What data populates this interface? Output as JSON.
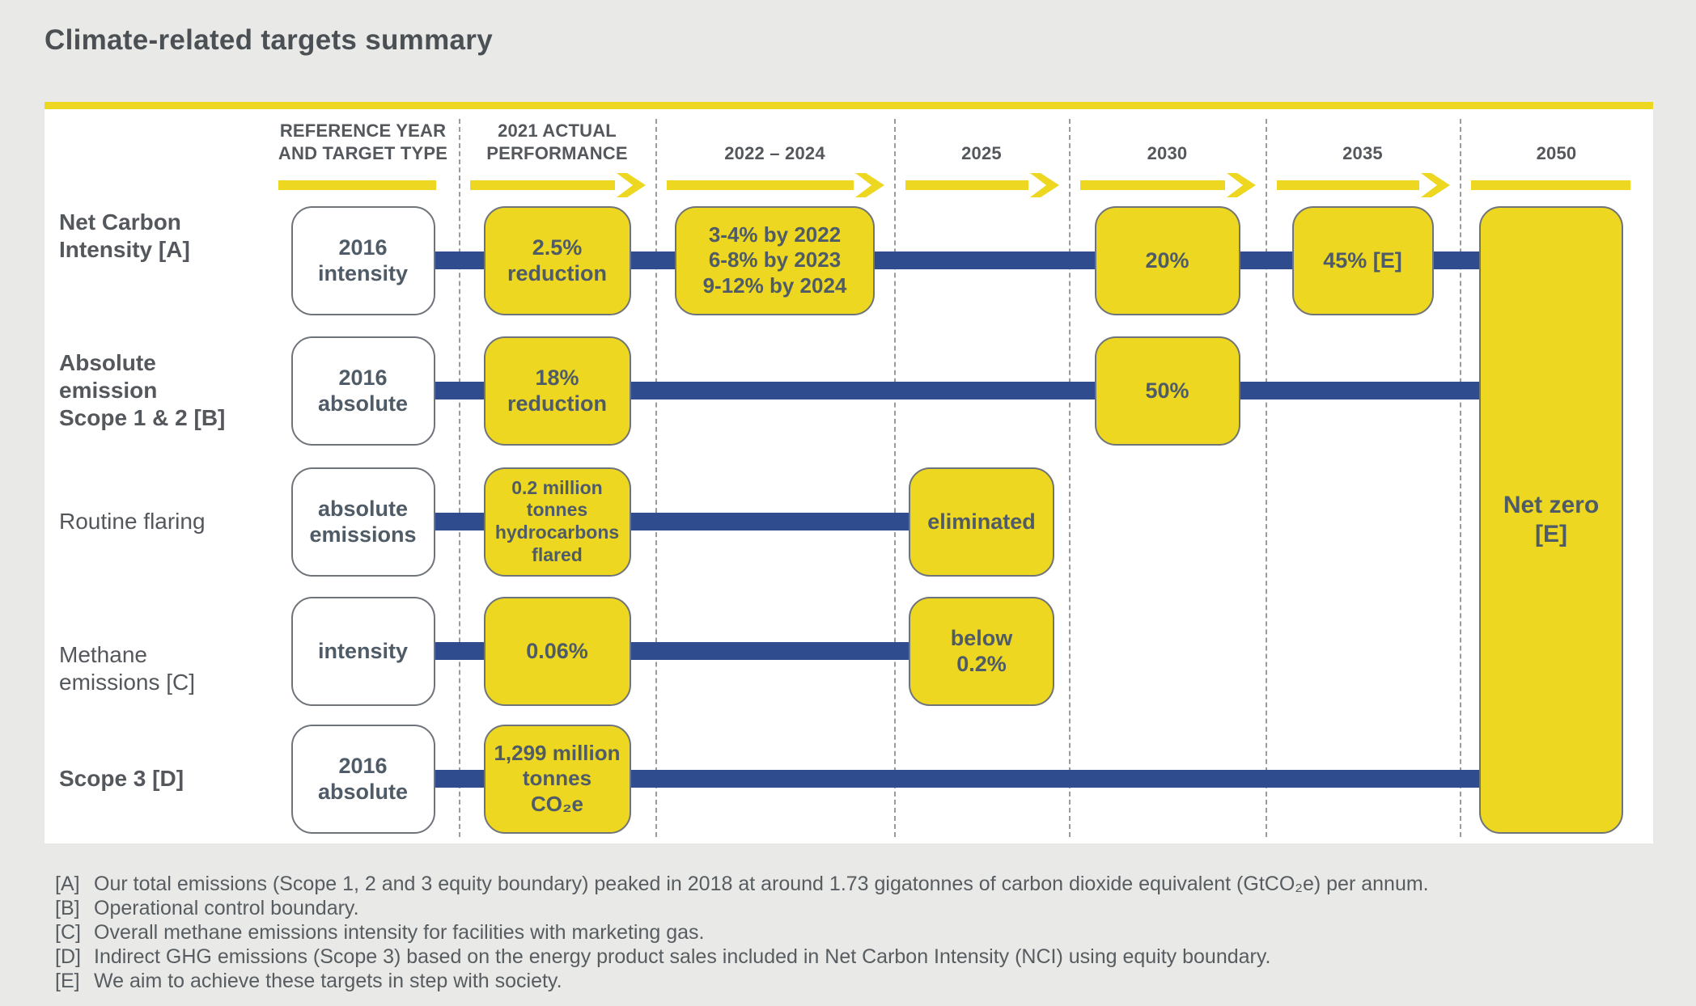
{
  "title": "Climate-related targets summary",
  "diagram": {
    "columns": [
      {
        "id": "ref",
        "header": [
          "REFERENCE YEAR",
          "AND TARGET TYPE"
        ],
        "arrow": "bar"
      },
      {
        "id": "y2021",
        "header": [
          "2021 ACTUAL",
          "PERFORMANCE"
        ],
        "arrow": "arrow"
      },
      {
        "id": "y2022_24",
        "header": [
          "2022 – 2024"
        ],
        "arrow": "arrow"
      },
      {
        "id": "y2025",
        "header": [
          "2025"
        ],
        "arrow": "arrow"
      },
      {
        "id": "y2030",
        "header": [
          "2030"
        ],
        "arrow": "arrow"
      },
      {
        "id": "y2035",
        "header": [
          "2035"
        ],
        "arrow": "arrow"
      },
      {
        "id": "y2050",
        "header": [
          "2050"
        ],
        "arrow": "bar"
      }
    ],
    "rows": [
      {
        "id": "net-carbon-intensity",
        "label": "Net Carbon\nIntensity [A]",
        "label_bold": true,
        "ref_box": "2016\nintensity",
        "cells": {
          "y2021": "2.5%\nreduction",
          "y2022_24": "3-4% by 2022\n6-8% by 2023\n9-12% by 2024",
          "y2030": "20%",
          "y2035": "45% [E]"
        },
        "line_to": "netzero"
      },
      {
        "id": "absolute-emission-scope-1-2",
        "label": "Absolute\nemission\nScope 1 & 2 [B]",
        "label_bold": true,
        "ref_box": "2016\nabsolute",
        "cells": {
          "y2021": "18%\nreduction",
          "y2030": "50%"
        },
        "line_to": "netzero"
      },
      {
        "id": "routine-flaring",
        "label": "Routine flaring",
        "label_bold": false,
        "ref_box": "absolute\nemissions",
        "cells": {
          "y2021": "0.2 million\ntonnes\nhydrocarbons\nflared",
          "y2025": "eliminated"
        },
        "line_to": "y2025"
      },
      {
        "id": "methane-emissions",
        "label": "Methane\nemissions [C]",
        "label_bold": false,
        "ref_box": "intensity",
        "cells": {
          "y2021": "0.06%",
          "y2025": "below\n0.2%"
        },
        "line_to": "y2025"
      },
      {
        "id": "scope-3",
        "label": "Scope 3 [D]",
        "label_bold": true,
        "ref_box": "2016\nabsolute",
        "cells": {
          "y2021": "1,299 million\ntonnes\nCO₂e"
        },
        "line_to": "netzero"
      }
    ],
    "netzero_label": "Net zero\n[E]",
    "colors": {
      "yellow": "#EDD720",
      "blue": "#2E4C8E",
      "panel_white": "#FFFFFF",
      "page_background": "#E9E9E7",
      "text_dark": "#54585C",
      "box_text": "#4F5B66",
      "box_border": "#6F747A",
      "dashed_divider": "#9B9B9B"
    }
  },
  "footnotes": [
    {
      "tag": "[A]",
      "text": "Our total emissions (Scope 1, 2 and 3 equity boundary) peaked in 2018 at around 1.73 gigatonnes of carbon dioxide equivalent (GtCO₂e) per annum."
    },
    {
      "tag": "[B]",
      "text": "Operational control boundary."
    },
    {
      "tag": "[C]",
      "text": "Overall methane emissions intensity for facilities with marketing gas."
    },
    {
      "tag": "[D]",
      "text": "Indirect GHG emissions (Scope 3) based on the energy product sales included in Net Carbon Intensity (NCI) using equity boundary."
    },
    {
      "tag": "[E]",
      "text": "We aim to achieve these targets in step with society."
    }
  ]
}
